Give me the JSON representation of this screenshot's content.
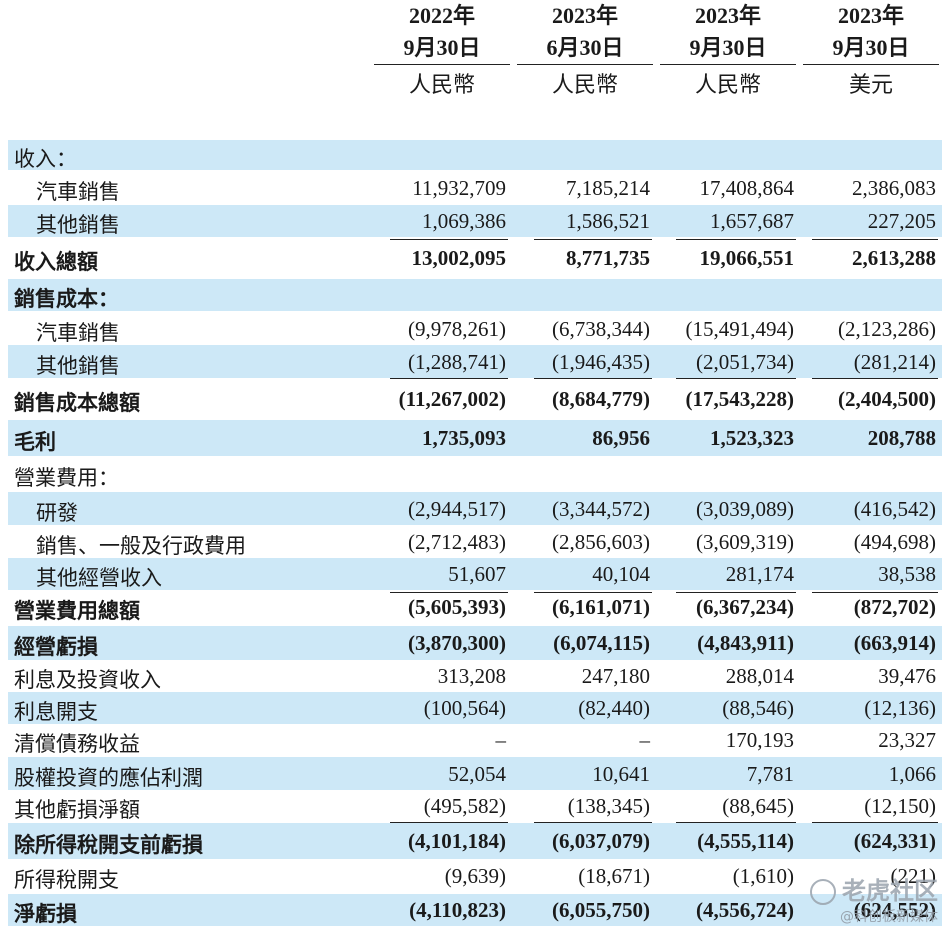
{
  "columns": [
    {
      "year": "2022年",
      "date": "9月30日",
      "currency": "人民幣"
    },
    {
      "year": "2023年",
      "date": "6月30日",
      "currency": "人民幣"
    },
    {
      "year": "2023年",
      "date": "9月30日",
      "currency": "人民幣"
    },
    {
      "year": "2023年",
      "date": "9月30日",
      "currency": "美元"
    }
  ],
  "rows": [
    {
      "label": "收入：",
      "values": [
        "",
        "",
        "",
        ""
      ],
      "shade": true,
      "bold": false,
      "indent": false
    },
    {
      "label": "汽車銷售",
      "values": [
        "11,932,709",
        "7,185,214",
        "17,408,864",
        "2,386,083"
      ],
      "shade": false,
      "bold": false,
      "indent": true
    },
    {
      "label": "其他銷售",
      "values": [
        "1,069,386",
        "1,586,521",
        "1,657,687",
        "227,205"
      ],
      "shade": true,
      "bold": false,
      "indent": true
    },
    {
      "label": "收入總額",
      "values": [
        "13,002,095",
        "8,771,735",
        "19,066,551",
        "2,613,288"
      ],
      "shade": false,
      "bold": true,
      "indent": false
    },
    {
      "label": "銷售成本：",
      "values": [
        "",
        "",
        "",
        ""
      ],
      "shade": true,
      "bold": true,
      "indent": false
    },
    {
      "label": "汽車銷售",
      "values": [
        "(9,978,261)",
        "(6,738,344)",
        "(15,491,494)",
        "(2,123,286)"
      ],
      "shade": false,
      "bold": false,
      "indent": true
    },
    {
      "label": "其他銷售",
      "values": [
        "(1,288,741)",
        "(1,946,435)",
        "(2,051,734)",
        "(281,214)"
      ],
      "shade": true,
      "bold": false,
      "indent": true
    },
    {
      "label": "銷售成本總額",
      "values": [
        "(11,267,002)",
        "(8,684,779)",
        "(17,543,228)",
        "(2,404,500)"
      ],
      "shade": false,
      "bold": true,
      "indent": false
    },
    {
      "label": "毛利",
      "values": [
        "1,735,093",
        "86,956",
        "1,523,323",
        "208,788"
      ],
      "shade": true,
      "bold": true,
      "indent": false
    },
    {
      "label": "營業費用：",
      "values": [
        "",
        "",
        "",
        ""
      ],
      "shade": false,
      "bold": false,
      "indent": false
    },
    {
      "label": "研發",
      "values": [
        "(2,944,517)",
        "(3,344,572)",
        "(3,039,089)",
        "(416,542)"
      ],
      "shade": true,
      "bold": false,
      "indent": true
    },
    {
      "label": "銷售、一般及行政費用",
      "values": [
        "(2,712,483)",
        "(2,856,603)",
        "(3,609,319)",
        "(494,698)"
      ],
      "shade": false,
      "bold": false,
      "indent": true
    },
    {
      "label": "其他經營收入",
      "values": [
        "51,607",
        "40,104",
        "281,174",
        "38,538"
      ],
      "shade": true,
      "bold": false,
      "indent": true
    },
    {
      "label": "營業費用總額",
      "values": [
        "(5,605,393)",
        "(6,161,071)",
        "(6,367,234)",
        "(872,702)"
      ],
      "shade": false,
      "bold": true,
      "indent": false
    },
    {
      "label": "經營虧損",
      "values": [
        "(3,870,300)",
        "(6,074,115)",
        "(4,843,911)",
        "(663,914)"
      ],
      "shade": true,
      "bold": true,
      "indent": false
    },
    {
      "label": "利息及投資收入",
      "values": [
        "313,208",
        "247,180",
        "288,014",
        "39,476"
      ],
      "shade": false,
      "bold": false,
      "indent": false
    },
    {
      "label": "利息開支",
      "values": [
        "(100,564)",
        "(82,440)",
        "(88,546)",
        "(12,136)"
      ],
      "shade": true,
      "bold": false,
      "indent": false
    },
    {
      "label": "清償債務收益",
      "values": [
        "–",
        "–",
        "170,193",
        "23,327"
      ],
      "shade": false,
      "bold": false,
      "indent": false
    },
    {
      "label": "股權投資的應佔利潤",
      "values": [
        "52,054",
        "10,641",
        "7,781",
        "1,066"
      ],
      "shade": true,
      "bold": false,
      "indent": false
    },
    {
      "label": "其他虧損淨額",
      "values": [
        "(495,582)",
        "(138,345)",
        "(88,645)",
        "(12,150)"
      ],
      "shade": false,
      "bold": false,
      "indent": false
    },
    {
      "label": "除所得稅開支前虧損",
      "values": [
        "(4,101,184)",
        "(6,037,079)",
        "(4,555,114)",
        "(624,331)"
      ],
      "shade": true,
      "bold": true,
      "indent": false
    },
    {
      "label": "所得稅開支",
      "values": [
        "(9,639)",
        "(18,671)",
        "(1,610)",
        "(221)"
      ],
      "shade": false,
      "bold": false,
      "indent": false
    },
    {
      "label": "淨虧損",
      "values": [
        "(4,110,823)",
        "(6,055,750)",
        "(4,556,724)",
        "(624,552)"
      ],
      "shade": true,
      "bold": true,
      "indent": false
    }
  ],
  "watermark": {
    "main": "老虎社区",
    "sub": "@科创板新媒体"
  }
}
